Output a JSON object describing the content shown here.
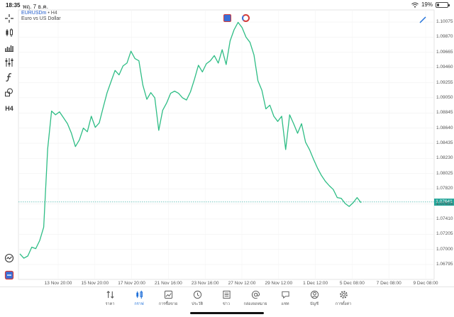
{
  "status": {
    "time": "18:35",
    "date": "พฤ. 7 ธ.ค.",
    "battery": "19%",
    "battery_level": 0.19
  },
  "symbol": {
    "name": "EURUSDm",
    "separator": "•",
    "timeframe": "H4",
    "description": "Euro vs US Dollar"
  },
  "toolbar": {
    "tools": [
      "crosshair-icon",
      "candles-icon",
      "indicators-icon",
      "objects-icon",
      "function-icon",
      "shapes-icon"
    ],
    "timeframe_label": "H4"
  },
  "current_price": {
    "label": "1.07641",
    "value": 1.07641,
    "color": "#26a69a"
  },
  "chart_data": {
    "type": "line",
    "line_color": "#2ebd85",
    "y_ticks": [
      "1.10075",
      "1.09870",
      "1.09665",
      "1.09460",
      "1.09255",
      "1.09050",
      "1.08845",
      "1.08640",
      "1.08435",
      "1.08230",
      "1.08025",
      "1.07820",
      "1.07615",
      "1.07410",
      "1.07205",
      "1.07000",
      "1.06795"
    ],
    "ylim": [
      1.066,
      1.1025
    ],
    "x_labels": [
      "13 Nov 20:00",
      "15 Nov 20:00",
      "17 Nov 20:00",
      "21 Nov 16:00",
      "23 Nov 16:00",
      "27 Nov 12:00",
      "29 Nov 12:00",
      "1 Dec 12:00",
      "5 Dec 08:00",
      "7 Dec 08:00",
      "9 Dec 08:00"
    ],
    "values": [
      1.0694,
      1.0688,
      1.0691,
      1.0703,
      1.0701,
      1.0712,
      1.073,
      1.0836,
      1.0887,
      1.0882,
      1.0886,
      1.0878,
      1.087,
      1.0857,
      1.0839,
      1.0848,
      1.0864,
      1.0859,
      1.088,
      1.0865,
      1.0871,
      1.0892,
      1.0912,
      1.0927,
      1.0942,
      1.0936,
      1.0948,
      1.0952,
      1.0968,
      1.0958,
      1.0955,
      1.0922,
      1.0903,
      1.0912,
      1.0905,
      1.0861,
      1.0888,
      1.0898,
      1.0911,
      1.0914,
      1.0911,
      1.0905,
      1.0902,
      1.0913,
      1.093,
      1.0949,
      1.094,
      1.0951,
      1.0955,
      1.0962,
      1.0952,
      1.097,
      1.095,
      1.0982,
      1.0997,
      1.1007,
      1.1,
      1.0987,
      1.098,
      1.0963,
      1.0928,
      1.0915,
      1.089,
      1.0895,
      1.088,
      1.0873,
      1.088,
      1.0835,
      1.0882,
      1.087,
      1.0857,
      1.087,
      1.0845,
      1.0835,
      1.0822,
      1.081,
      1.08,
      1.0792,
      1.0786,
      1.0781,
      1.077,
      1.0769,
      1.0762,
      1.0758,
      1.0763,
      1.077,
      1.0763
    ],
    "current": 1.07641,
    "grid": true
  },
  "tabs": [
    {
      "icon": "quotes-icon",
      "label": "ราคา",
      "active": false
    },
    {
      "icon": "chart-icon",
      "label": "กราฟ",
      "active": true
    },
    {
      "icon": "trade-icon",
      "label": "การซื้อขาย",
      "active": false
    },
    {
      "icon": "history-icon",
      "label": "ประวัติ",
      "active": false
    },
    {
      "icon": "news-icon",
      "label": "ข่าว",
      "active": false
    },
    {
      "icon": "mailbox-icon",
      "label": "กล่องจดหมาย",
      "active": false
    },
    {
      "icon": "chat-icon",
      "label": "แชท",
      "active": false
    },
    {
      "icon": "account-icon",
      "label": "บัญชี",
      "active": false
    },
    {
      "icon": "settings-icon",
      "label": "การตั้งค่า",
      "active": false
    }
  ]
}
